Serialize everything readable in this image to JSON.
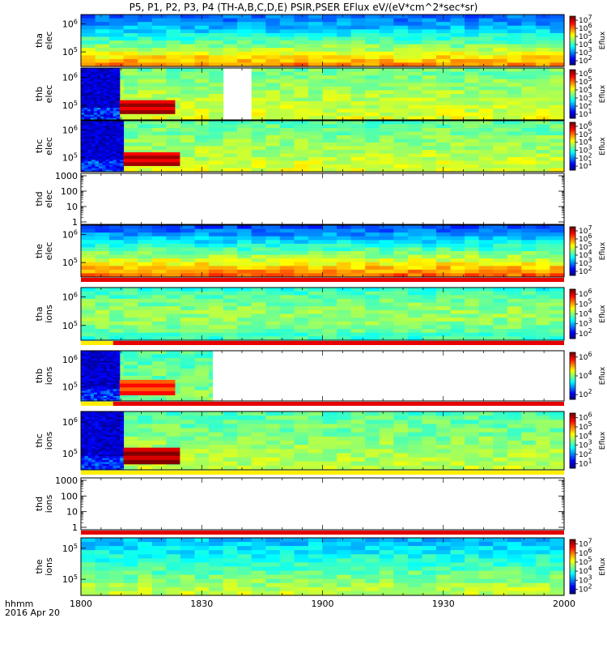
{
  "title": "P5, P1, P2, P3, P4 (TH-A,B,C,D,E) PSIR,PSER EFlux eV/(eV*cm^2*sec*sr)",
  "time_axis": {
    "ticks": [
      "1800",
      "1830",
      "1900",
      "1930",
      "2000"
    ],
    "corner_label_1": "hhmm",
    "corner_label_2": "2016 Apr 20"
  },
  "colorbar_label": "Eflux",
  "chart_data": [
    {
      "type": "heatmap",
      "name": "tha elec",
      "ylabel": [
        "tha",
        "elec"
      ],
      "yscale": "log",
      "yticks": [
        "10^6",
        "10^5"
      ],
      "colorbar_ticks": [
        "10^7",
        "10^6",
        "10^5",
        "10^4",
        "10^3",
        "10^2"
      ],
      "colorbar_range": [
        1.5,
        7.5
      ],
      "flag_bar": null
    },
    {
      "type": "heatmap",
      "name": "thb elec",
      "ylabel": [
        "thb",
        "elec"
      ],
      "yscale": "log",
      "yticks": [
        "10^6",
        "10^5"
      ],
      "colorbar_ticks": [
        "10^6",
        "10^5",
        "10^4",
        "10^3",
        "10^2",
        "10^1"
      ],
      "colorbar_range": [
        0.5,
        6.5
      ],
      "flag_bar": null
    },
    {
      "type": "heatmap",
      "name": "thc elec",
      "ylabel": [
        "thc",
        "elec"
      ],
      "yscale": "log",
      "yticks": [
        "10^6",
        "10^5"
      ],
      "colorbar_ticks": [
        "10^6",
        "10^5",
        "10^4",
        "10^3",
        "10^2",
        "10^1"
      ],
      "colorbar_range": [
        0.5,
        6.5
      ],
      "flag_bar": null
    },
    {
      "type": "line",
      "name": "thd elec",
      "ylabel": [
        "thd",
        "elec"
      ],
      "yscale": "log",
      "yticks": [
        "1000",
        "100",
        "10",
        "1"
      ],
      "ylim": [
        1,
        1000
      ],
      "series": []
    },
    {
      "type": "heatmap",
      "name": "the elec",
      "ylabel": [
        "the",
        "elec"
      ],
      "yscale": "log",
      "yticks": [
        "10^6",
        "10^5"
      ],
      "colorbar_ticks": [
        "10^7",
        "10^6",
        "10^5",
        "10^4",
        "10^3",
        "10^2"
      ],
      "colorbar_range": [
        1.5,
        7.5
      ],
      "flag_bar": [
        {
          "start": "1800",
          "end": "2000",
          "color": "#e60000"
        }
      ]
    },
    {
      "type": "heatmap",
      "name": "tha ions",
      "ylabel": [
        "tha",
        "ions"
      ],
      "yscale": "log",
      "yticks": [
        "10^6",
        "10^5"
      ],
      "colorbar_ticks": [
        "10^6",
        "10^5",
        "10^4",
        "10^3",
        "10^2"
      ],
      "colorbar_range": [
        1.5,
        6.5
      ],
      "flag_bar": [
        {
          "start": "1800",
          "end": "1808",
          "color": "#ffee00"
        },
        {
          "start": "1808",
          "end": "2000",
          "color": "#e60000"
        }
      ]
    },
    {
      "type": "heatmap",
      "name": "thb ions",
      "ylabel": [
        "thb",
        "ions"
      ],
      "yscale": "log",
      "yticks": [
        "10^6",
        "10^5"
      ],
      "colorbar_ticks": [
        "10^6",
        "10^4",
        "10^2"
      ],
      "colorbar_range": [
        1.5,
        6.5
      ],
      "flag_bar": [
        {
          "start": "1800",
          "end": "1808",
          "color": "#ffee00"
        },
        {
          "start": "1808",
          "end": "2000",
          "color": "#e60000"
        }
      ]
    },
    {
      "type": "heatmap",
      "name": "thc ions",
      "ylabel": [
        "thc",
        "ions"
      ],
      "yscale": "log",
      "yticks": [
        "10^6",
        "10^5"
      ],
      "colorbar_ticks": [
        "10^6",
        "10^5",
        "10^4",
        "10^3",
        "10^2",
        "10^1"
      ],
      "colorbar_range": [
        0.5,
        6.5
      ],
      "flag_bar": [
        {
          "start": "1800",
          "end": "2000",
          "color": "#ffee00"
        }
      ]
    },
    {
      "type": "line",
      "name": "thd ions",
      "ylabel": [
        "thd",
        "ions"
      ],
      "yscale": "log",
      "yticks": [
        "1000",
        "100",
        "10",
        "1"
      ],
      "ylim": [
        1,
        1000
      ],
      "series": [],
      "flag_bar": [
        {
          "start": "1800",
          "end": "2000",
          "color": "#e60000"
        }
      ]
    },
    {
      "type": "heatmap",
      "name": "the ions",
      "ylabel": [
        "the",
        "ions"
      ],
      "yscale": "log",
      "yticks": [
        "10^5",
        "10^5"
      ],
      "colorbar_ticks": [
        "10^7",
        "10^6",
        "10^5",
        "10^4",
        "10^3",
        "10^2"
      ],
      "colorbar_range": [
        1.5,
        7.5
      ],
      "flag_bar": null
    }
  ]
}
